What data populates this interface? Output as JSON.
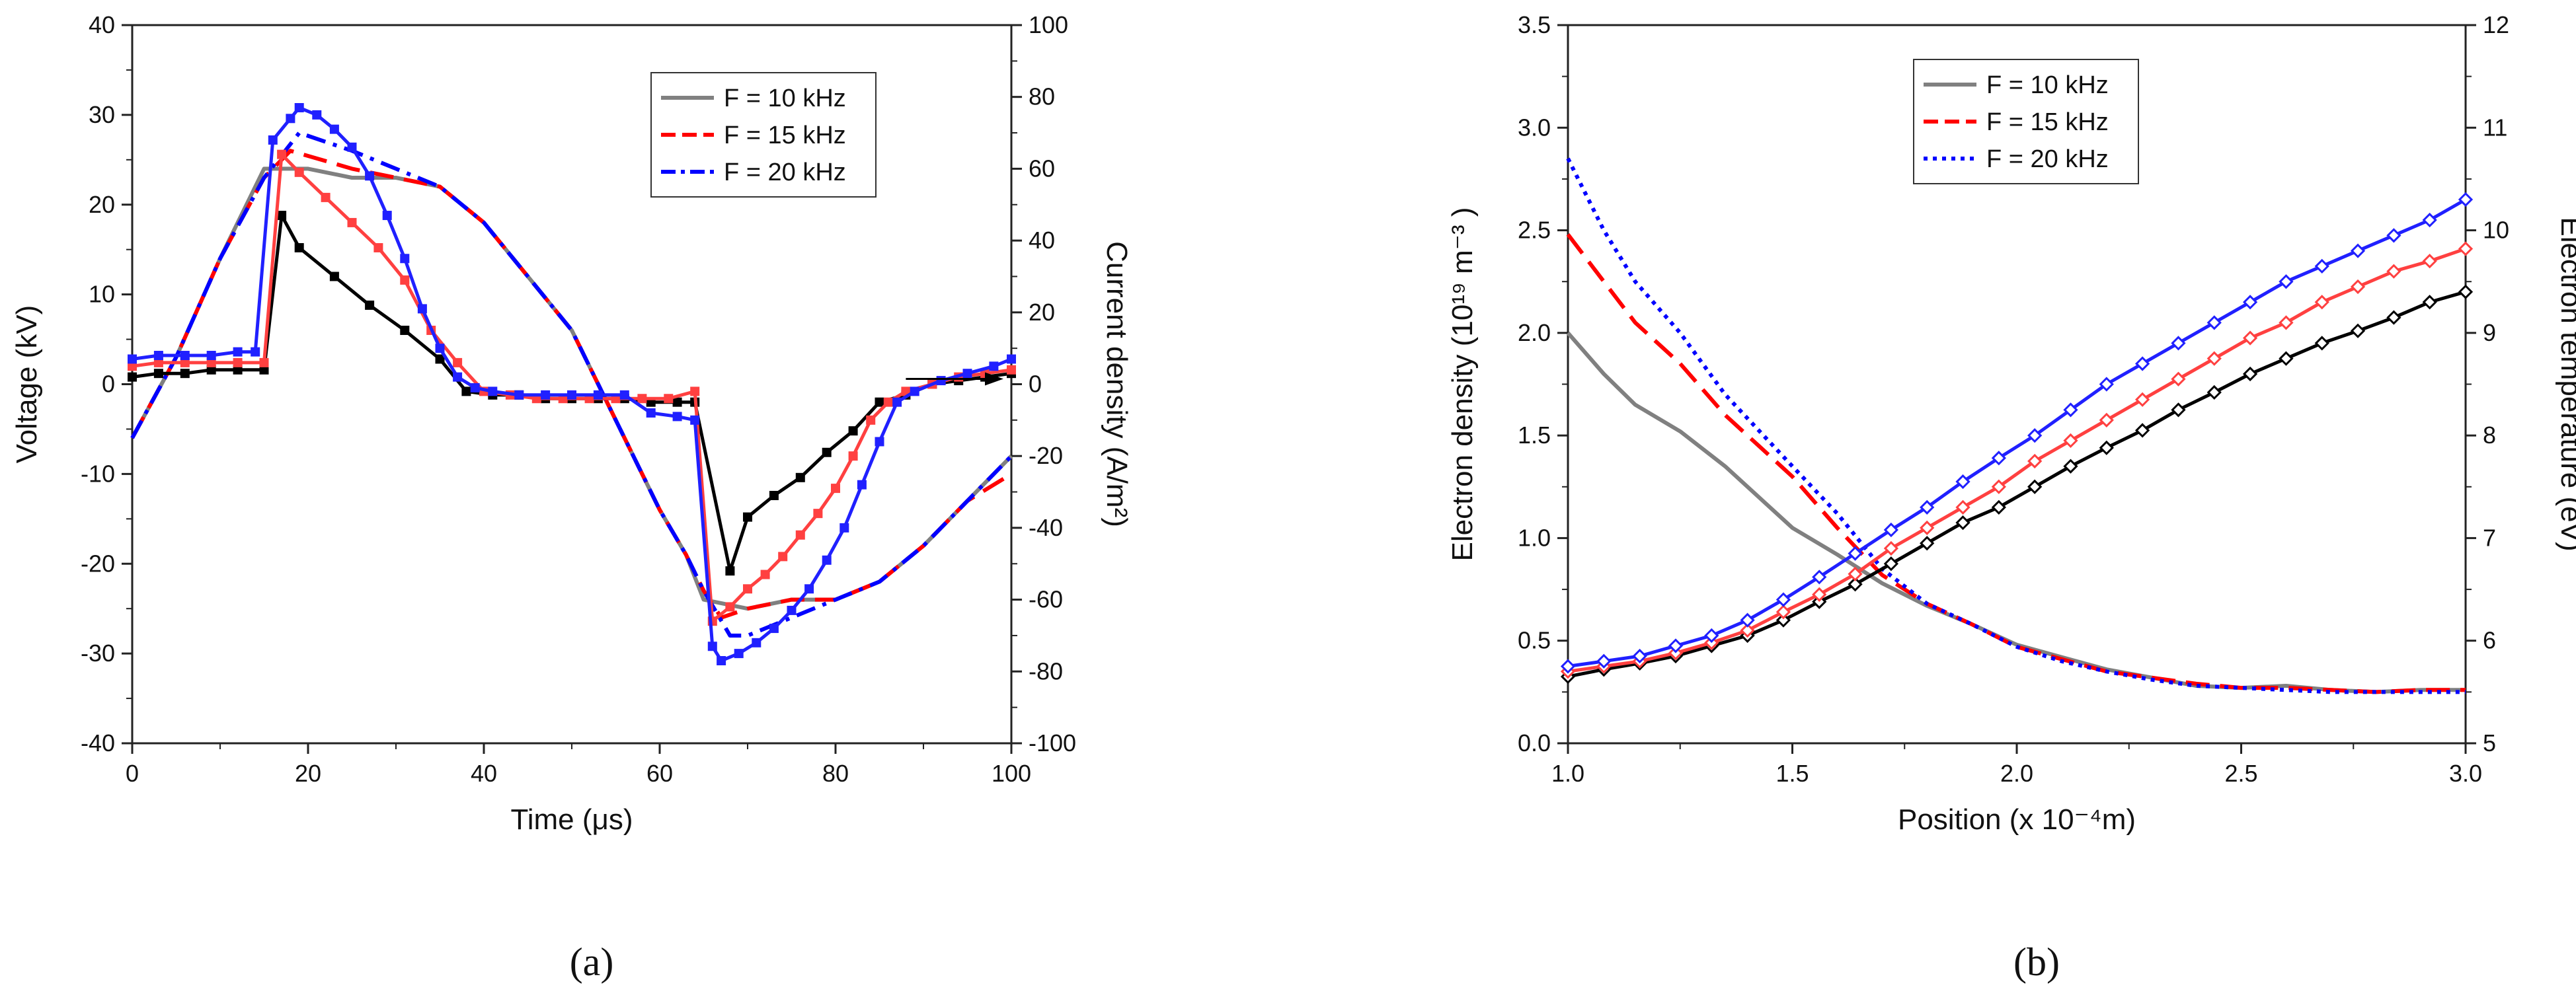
{
  "chart_data": [
    {
      "type": "line",
      "panel_label": "(a)",
      "xlabel": "Time (μs)",
      "ylabel": "Voltage (kV)",
      "ylabel_right": "Current density (A/m²)",
      "xlim": [
        0,
        100
      ],
      "ylim": [
        -40,
        40
      ],
      "ylim_right": [
        -100,
        100
      ],
      "xticks": [
        "0",
        "20",
        "40",
        "60",
        "80",
        "100"
      ],
      "yticks": [
        "-40",
        "-30",
        "-20",
        "-10",
        "0",
        "10",
        "20",
        "30",
        "40"
      ],
      "yticks_right": [
        "-100",
        "-80",
        "-60",
        "-40",
        "-20",
        "0",
        "20",
        "40",
        "60",
        "80",
        "100"
      ],
      "grid": false,
      "legend_position": "top-right",
      "colors": {
        "f10": "#808080",
        "f15": "#ff0000",
        "f20": "#0000ff",
        "current10": "#000000",
        "current15": "#ff4040",
        "current20": "#2020ff"
      },
      "series": [
        {
          "name": "F = 10 kHz",
          "axis": "left",
          "style": "solid",
          "x": [
            0,
            5,
            10,
            15,
            20,
            25,
            30,
            35,
            40,
            45,
            50,
            55,
            60,
            63,
            65,
            70,
            75,
            80,
            85,
            90,
            95,
            100
          ],
          "y": [
            -6,
            3,
            14,
            24,
            24,
            23,
            23,
            22,
            18,
            12,
            6,
            -4,
            -14,
            -19,
            -24,
            -25,
            -24,
            -24,
            -22,
            -18,
            -13,
            -8
          ]
        },
        {
          "name": "F = 15 kHz",
          "axis": "left",
          "style": "dashed",
          "x": [
            0,
            5,
            10,
            15,
            18,
            25,
            30,
            35,
            40,
            45,
            50,
            55,
            60,
            63,
            65,
            67,
            70,
            75,
            80,
            85,
            90,
            95,
            100
          ],
          "y": [
            -6,
            3,
            14,
            23,
            26,
            24,
            23,
            22,
            18,
            12,
            6,
            -4,
            -14,
            -19,
            -23,
            -26,
            -25,
            -24,
            -24,
            -22,
            -18,
            -13,
            -10
          ]
        },
        {
          "name": "F = 20 kHz",
          "axis": "left",
          "style": "dash-dot",
          "x": [
            0,
            5,
            10,
            15,
            19,
            25,
            30,
            35,
            40,
            45,
            50,
            55,
            60,
            63,
            65,
            68,
            70,
            75,
            80,
            85,
            90,
            95,
            100
          ],
          "y": [
            -6,
            3,
            14,
            23,
            28,
            26,
            24,
            22,
            18,
            12,
            6,
            -4,
            -14,
            -19,
            -23,
            -28,
            -28,
            -26,
            -24,
            -22,
            -18,
            -13,
            -8
          ]
        },
        {
          "name": "",
          "axis": "right",
          "style": "markers-square",
          "x": [
            0,
            3,
            6,
            9,
            12,
            15,
            17,
            19,
            23,
            27,
            31,
            35,
            38,
            41,
            44,
            47,
            50,
            53,
            56,
            59,
            62,
            64,
            68,
            70,
            73,
            76,
            79,
            82,
            85,
            88,
            91,
            94,
            97,
            100
          ],
          "y": [
            2,
            3,
            3,
            4,
            4,
            4,
            47,
            38,
            30,
            22,
            15,
            7,
            -2,
            -3,
            -3,
            -4,
            -4,
            -4,
            -4,
            -5,
            -5,
            -5,
            -52,
            -37,
            -31,
            -26,
            -19,
            -13,
            -5,
            -3,
            0,
            1,
            2,
            3
          ]
        },
        {
          "name": "",
          "axis": "right",
          "style": "markers-square",
          "x": [
            0,
            3,
            6,
            9,
            12,
            15,
            17,
            19,
            22,
            25,
            28,
            31,
            34,
            37,
            40,
            43,
            46,
            49,
            52,
            55,
            58,
            61,
            64,
            66,
            68,
            70,
            72,
            74,
            76,
            78,
            80,
            82,
            84,
            86,
            88,
            91,
            94,
            97,
            100
          ],
          "y": [
            5,
            6,
            6,
            6,
            6,
            6,
            64,
            59,
            52,
            45,
            38,
            29,
            15,
            6,
            -2,
            -3,
            -4,
            -4,
            -4,
            -4,
            -4,
            -4,
            -2,
            -66,
            -62,
            -57,
            -53,
            -48,
            -42,
            -36,
            -29,
            -20,
            -10,
            -5,
            -2,
            0,
            2,
            3,
            4
          ]
        },
        {
          "name": "",
          "axis": "right",
          "style": "markers-square",
          "x": [
            0,
            3,
            6,
            9,
            12,
            14,
            16,
            18,
            19,
            21,
            23,
            25,
            27,
            29,
            31,
            33,
            35,
            37,
            39,
            41,
            44,
            47,
            50,
            53,
            56,
            59,
            62,
            64,
            66,
            67,
            69,
            71,
            73,
            75,
            77,
            79,
            81,
            83,
            85,
            87,
            89,
            92,
            95,
            98,
            100
          ],
          "y": [
            7,
            8,
            8,
            8,
            9,
            9,
            68,
            74,
            77,
            75,
            71,
            66,
            58,
            47,
            35,
            21,
            10,
            2,
            -1,
            -2,
            -3,
            -3,
            -3,
            -3,
            -3,
            -8,
            -9,
            -10,
            -73,
            -77,
            -75,
            -72,
            -68,
            -63,
            -57,
            -49,
            -40,
            -28,
            -16,
            -5,
            -2,
            1,
            3,
            5,
            7
          ]
        }
      ],
      "annotation_arrow": {
        "from": [
          88,
          0
        ],
        "to": [
          100,
          0
        ]
      }
    },
    {
      "type": "line",
      "panel_label": "(b)",
      "xlabel": "Position (x 10⁻⁴m)",
      "ylabel": "Electron density (10¹⁹ m⁻³ )",
      "ylabel_right": "Electron temperature (eV)",
      "xlim": [
        1.0,
        3.0
      ],
      "ylim": [
        0,
        3.5
      ],
      "ylim_right": [
        5,
        12
      ],
      "xticks": [
        "1.0",
        "1.5",
        "2.0",
        "2.5",
        "3.0"
      ],
      "yticks": [
        "0.0",
        "0.5",
        "1.0",
        "1.5",
        "2.0",
        "2.5",
        "3.0",
        "3.5"
      ],
      "yticks_right": [
        "5",
        "6",
        "7",
        "8",
        "9",
        "10",
        "11",
        "12"
      ],
      "grid": false,
      "legend_position": "top-left",
      "colors": {
        "f10": "#808080",
        "f15": "#ff0000",
        "f20": "#0000ff",
        "temp10": "#000000",
        "temp15": "#ff4040",
        "temp20": "#2020ff"
      },
      "series": [
        {
          "name": "F = 10 kHz",
          "axis": "left",
          "style": "solid",
          "x": [
            1.0,
            1.08,
            1.15,
            1.25,
            1.35,
            1.5,
            1.6,
            1.7,
            1.8,
            1.9,
            2.0,
            2.1,
            2.2,
            2.3,
            2.4,
            2.5,
            2.6,
            2.7,
            2.8,
            2.9,
            3.0
          ],
          "y": [
            2.0,
            1.8,
            1.65,
            1.52,
            1.35,
            1.05,
            0.92,
            0.78,
            0.67,
            0.58,
            0.48,
            0.42,
            0.36,
            0.32,
            0.28,
            0.27,
            0.28,
            0.26,
            0.25,
            0.26,
            0.26
          ]
        },
        {
          "name": "F = 15 kHz",
          "axis": "left",
          "style": "dashed",
          "x": [
            1.0,
            1.08,
            1.15,
            1.25,
            1.35,
            1.5,
            1.6,
            1.7,
            1.8,
            1.9,
            2.0,
            2.1,
            2.2,
            2.3,
            2.4,
            2.5,
            2.6,
            2.7,
            2.8,
            2.9,
            3.0
          ],
          "y": [
            2.48,
            2.25,
            2.05,
            1.85,
            1.6,
            1.3,
            1.05,
            0.82,
            0.68,
            0.58,
            0.47,
            0.41,
            0.35,
            0.32,
            0.29,
            0.27,
            0.27,
            0.26,
            0.25,
            0.26,
            0.26
          ]
        },
        {
          "name": "F = 20 kHz",
          "axis": "left",
          "style": "dotted",
          "x": [
            1.0,
            1.08,
            1.15,
            1.25,
            1.35,
            1.5,
            1.6,
            1.7,
            1.8,
            1.9,
            2.0,
            2.1,
            2.2,
            2.3,
            2.4,
            2.5,
            2.6,
            2.7,
            2.8,
            2.9,
            3.0
          ],
          "y": [
            2.85,
            2.5,
            2.25,
            2.0,
            1.7,
            1.35,
            1.12,
            0.85,
            0.68,
            0.58,
            0.47,
            0.4,
            0.35,
            0.31,
            0.28,
            0.27,
            0.26,
            0.25,
            0.25,
            0.25,
            0.25
          ]
        },
        {
          "name": "",
          "axis": "right",
          "style": "markers-diamond",
          "x": [
            1.0,
            1.08,
            1.16,
            1.24,
            1.32,
            1.4,
            1.48,
            1.56,
            1.64,
            1.72,
            1.8,
            1.88,
            1.96,
            2.04,
            2.12,
            2.2,
            2.28,
            2.36,
            2.44,
            2.52,
            2.6,
            2.68,
            2.76,
            2.84,
            2.92,
            3.0
          ],
          "y": [
            5.65,
            5.72,
            5.78,
            5.85,
            5.95,
            6.05,
            6.2,
            6.38,
            6.55,
            6.75,
            6.95,
            7.15,
            7.3,
            7.5,
            7.7,
            7.88,
            8.05,
            8.25,
            8.42,
            8.6,
            8.75,
            8.9,
            9.02,
            9.15,
            9.3,
            9.4
          ]
        },
        {
          "name": "",
          "axis": "right",
          "style": "markers-diamond",
          "x": [
            1.0,
            1.08,
            1.16,
            1.24,
            1.32,
            1.4,
            1.48,
            1.56,
            1.64,
            1.72,
            1.8,
            1.88,
            1.96,
            2.04,
            2.12,
            2.2,
            2.28,
            2.36,
            2.44,
            2.52,
            2.6,
            2.68,
            2.76,
            2.84,
            2.92,
            3.0
          ],
          "y": [
            5.7,
            5.75,
            5.8,
            5.88,
            5.98,
            6.1,
            6.28,
            6.45,
            6.65,
            6.9,
            7.1,
            7.3,
            7.5,
            7.75,
            7.95,
            8.15,
            8.35,
            8.55,
            8.75,
            8.95,
            9.1,
            9.3,
            9.45,
            9.6,
            9.7,
            9.82
          ]
        },
        {
          "name": "",
          "axis": "right",
          "style": "markers-diamond",
          "x": [
            1.0,
            1.08,
            1.16,
            1.24,
            1.32,
            1.4,
            1.48,
            1.56,
            1.64,
            1.72,
            1.8,
            1.88,
            1.96,
            2.04,
            2.12,
            2.2,
            2.28,
            2.36,
            2.44,
            2.52,
            2.6,
            2.68,
            2.76,
            2.84,
            2.92,
            3.0
          ],
          "y": [
            5.75,
            5.8,
            5.85,
            5.95,
            6.05,
            6.2,
            6.4,
            6.62,
            6.85,
            7.08,
            7.3,
            7.55,
            7.78,
            8.0,
            8.25,
            8.5,
            8.7,
            8.9,
            9.1,
            9.3,
            9.5,
            9.65,
            9.8,
            9.95,
            10.1,
            10.3
          ]
        }
      ]
    }
  ]
}
